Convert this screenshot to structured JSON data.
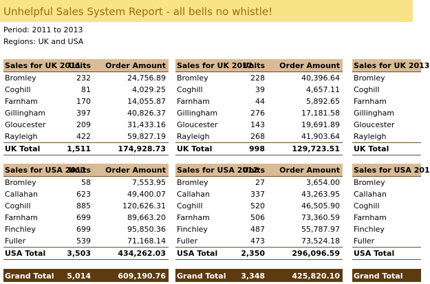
{
  "title": "Unhelpful Sales System Report - all bells no whistle!",
  "period": "Period: 2011 to 2013",
  "regions": "Regions: UK and USA",
  "tables": [
    {
      "header": [
        "Sales for UK 2011",
        "Units",
        "Order Amount"
      ],
      "rows": [
        [
          "Bromley",
          "232",
          "24,756.89"
        ],
        [
          "Coghill",
          "81",
          "4,029.25"
        ],
        [
          "Farnham",
          "170",
          "14,055.87"
        ],
        [
          "Gillingham",
          "397",
          "40,826.37"
        ],
        [
          "Gloucester",
          "209",
          "31,433.16"
        ],
        [
          "Rayleigh",
          "422",
          "59,827.19"
        ]
      ],
      "total": [
        "UK Total",
        "1,511",
        "174,928.73"
      ]
    },
    {
      "header": [
        "Sales for UK 2012",
        "Units",
        "Order Amount"
      ],
      "rows": [
        [
          "Bromley",
          "228",
          "40,396.64"
        ],
        [
          "Coghill",
          "39",
          "4,657.11"
        ],
        [
          "Farnham",
          "44",
          "5,892.65"
        ],
        [
          "Gillingham",
          "276",
          "17,181.58"
        ],
        [
          "Gloucester",
          "143",
          "19,691.89"
        ],
        [
          "Rayleigh",
          "268",
          "41,903.64"
        ]
      ],
      "total": [
        "UK Total",
        "998",
        "129,723.51"
      ]
    },
    {
      "header": [
        "Sales for UK 2013",
        "",
        ""
      ],
      "rows": [
        [
          "Bromley",
          "",
          ""
        ],
        [
          "Coghill",
          "",
          ""
        ],
        [
          "Farnham",
          "",
          ""
        ],
        [
          "Gillingham",
          "",
          ""
        ],
        [
          "Gloucester",
          "",
          ""
        ],
        [
          "Rayleigh",
          "",
          ""
        ]
      ],
      "total": [
        "UK Total",
        "",
        ""
      ]
    },
    {
      "header": [
        "Sales for USA 2011",
        "Units",
        "Order Amount"
      ],
      "rows": [
        [
          "Bromley",
          "58",
          "7,553.95"
        ],
        [
          "Callahan",
          "623",
          "49,400.07"
        ],
        [
          "Coghill",
          "885",
          "120,626.31"
        ],
        [
          "Farnham",
          "699",
          "89,663.20"
        ],
        [
          "Finchley",
          "699",
          "95,850.36"
        ],
        [
          "Fuller",
          "539",
          "71,168.14"
        ]
      ],
      "total": [
        "USA Total",
        "3,503",
        "434,262.03"
      ]
    },
    {
      "header": [
        "Sales for USA 2012",
        "Units",
        "Order Amount"
      ],
      "rows": [
        [
          "Bromley",
          "27",
          "3,654.00"
        ],
        [
          "Callahan",
          "337",
          "43,263.95"
        ],
        [
          "Coghill",
          "520",
          "46,505.90"
        ],
        [
          "Farnham",
          "506",
          "73,360.59"
        ],
        [
          "Finchley",
          "487",
          "55,787.97"
        ],
        [
          "Fuller",
          "473",
          "73,524.18"
        ]
      ],
      "total": [
        "USA Total",
        "2,350",
        "296,096.59"
      ]
    },
    {
      "header": [
        "Sales for USA 201",
        "",
        ""
      ],
      "rows": [
        [
          "Bromley",
          "",
          ""
        ],
        [
          "Callahan",
          "",
          ""
        ],
        [
          "Coghill",
          "",
          ""
        ],
        [
          "Farnham",
          "",
          ""
        ],
        [
          "Finchley",
          "",
          ""
        ],
        [
          "Fuller",
          "",
          ""
        ]
      ],
      "total": [
        "USA Total",
        "",
        ""
      ]
    }
  ],
  "grand_totals": [
    [
      "Grand Total",
      "5,014",
      "609,190.76"
    ],
    [
      "Grand Total",
      "3,348",
      "425,820.10"
    ],
    [
      "Grand Total",
      "",
      ""
    ]
  ]
}
